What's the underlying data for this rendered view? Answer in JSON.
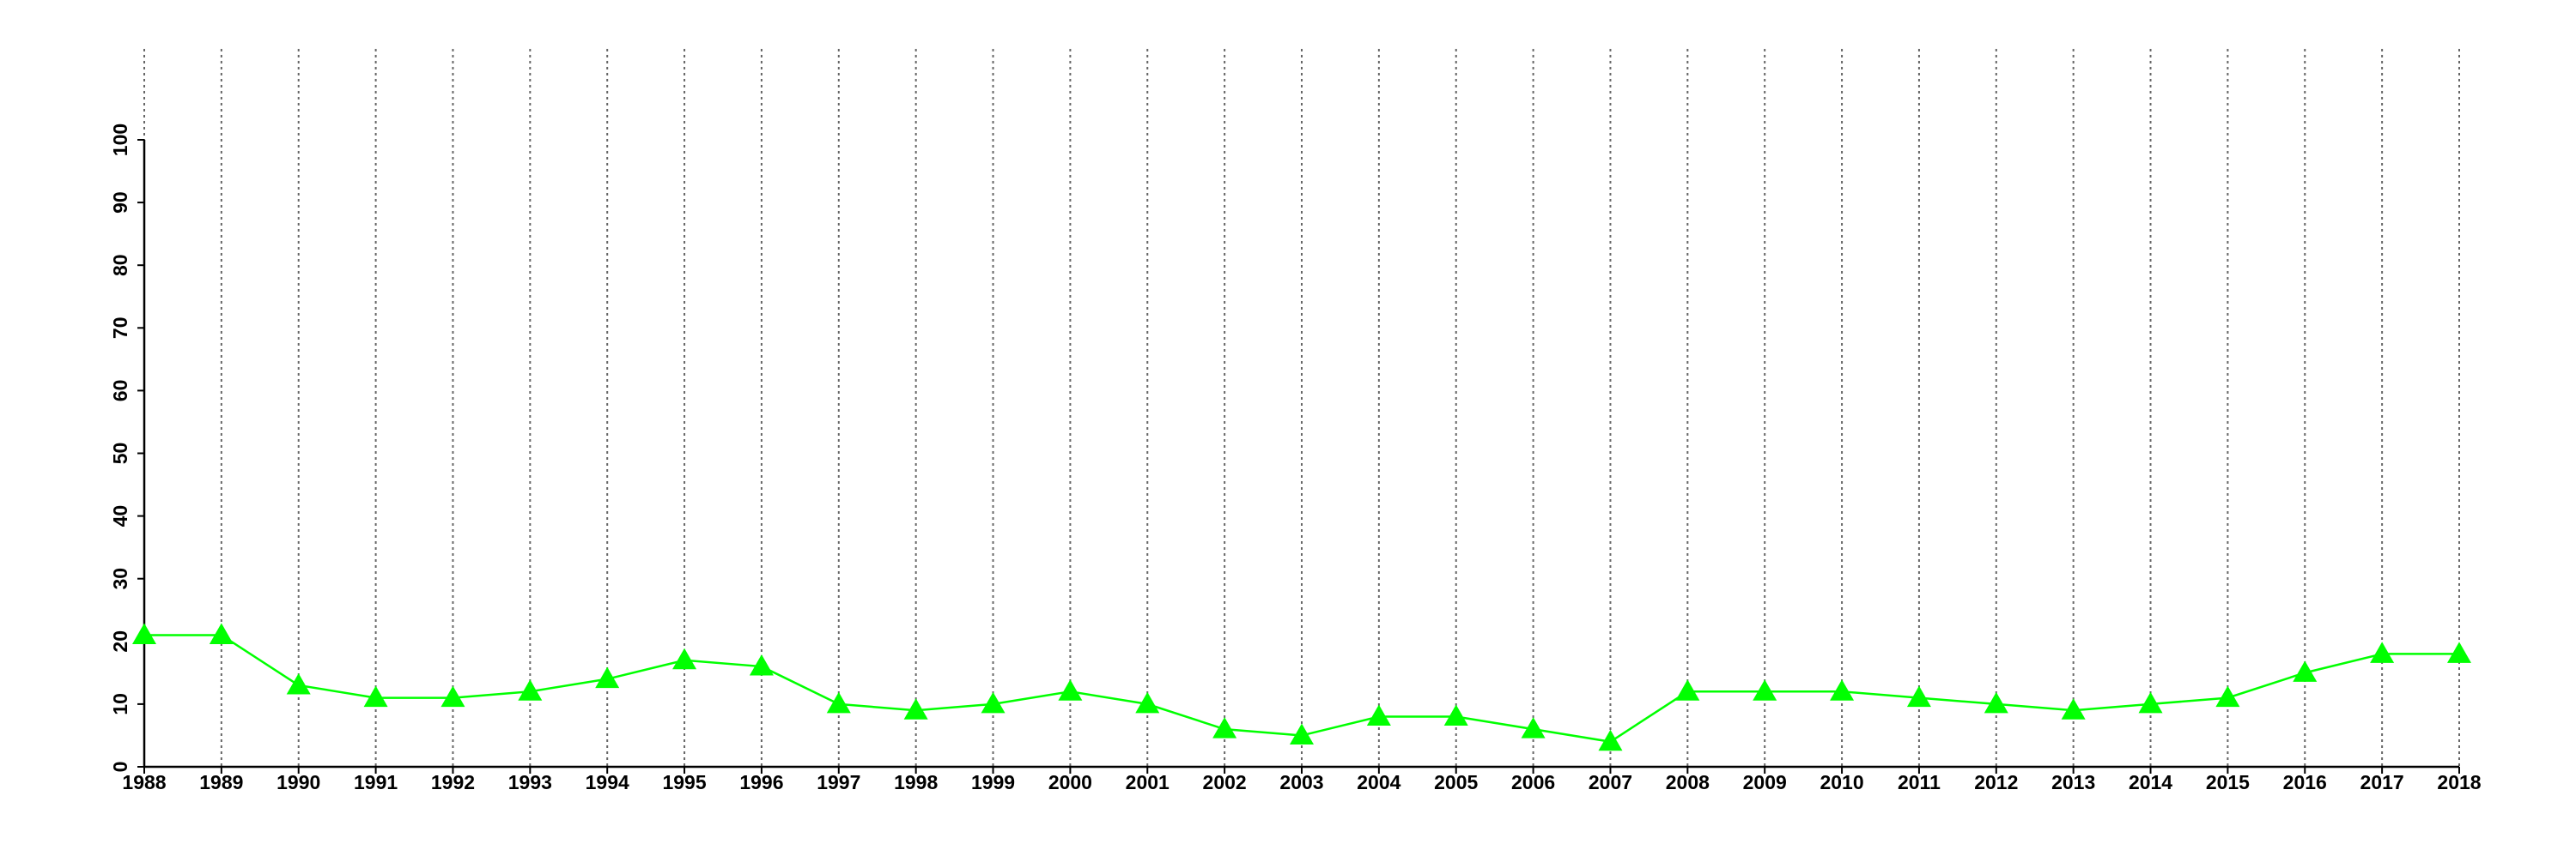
{
  "chart_data": {
    "type": "line",
    "x": [
      1988,
      1989,
      1990,
      1991,
      1992,
      1993,
      1994,
      1995,
      1996,
      1997,
      1998,
      1999,
      2000,
      2001,
      2002,
      2003,
      2004,
      2005,
      2006,
      2007,
      2008,
      2009,
      2010,
      2011,
      2012,
      2013,
      2014,
      2015,
      2016,
      2017,
      2018
    ],
    "series": [
      {
        "color": "#00ff00",
        "values": [
          21,
          21,
          13,
          11,
          11,
          12,
          14,
          17,
          16,
          10,
          9,
          10,
          12,
          10,
          6,
          5,
          8,
          8,
          6,
          4,
          12,
          12,
          12,
          11,
          10,
          9,
          10,
          11,
          15,
          18,
          18
        ]
      }
    ],
    "xlim": [
      1988,
      2018
    ],
    "xticks": [
      1988,
      1989,
      1990,
      1991,
      1992,
      1993,
      1994,
      1995,
      1996,
      1997,
      1998,
      1999,
      2000,
      2001,
      2002,
      2003,
      2004,
      2005,
      2006,
      2007,
      2008,
      2009,
      2010,
      2011,
      2012,
      2013,
      2014,
      2015,
      2016,
      2017,
      2018
    ],
    "ylim": [
      0,
      100
    ],
    "yticks": [
      0,
      10,
      20,
      30,
      40,
      50,
      60,
      70,
      80,
      90,
      100
    ],
    "grid": "x"
  }
}
